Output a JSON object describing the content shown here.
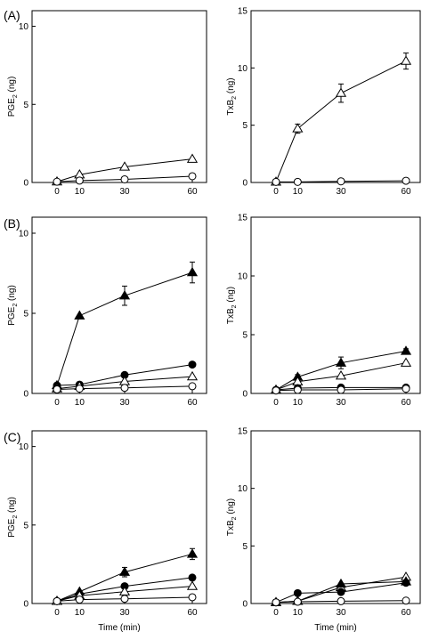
{
  "figure": {
    "panel_letters": [
      "(A)",
      "(B)",
      "(C)"
    ],
    "xlabel": "Time (min)"
  },
  "chart_data": [
    {
      "type": "line",
      "panel": "(A)",
      "ylabel": "PGE2 (ng)",
      "x_ticks": [
        "0",
        "10",
        "30",
        "60"
      ],
      "x": [
        0,
        10,
        30,
        60
      ],
      "ylim": [
        0,
        11
      ],
      "y_ticks": [
        "0",
        "5",
        "10"
      ],
      "series": [
        {
          "marker": "open-triangle",
          "values": [
            0.05,
            0.5,
            1.0,
            1.5
          ],
          "errors": [
            0,
            0,
            0,
            0
          ]
        },
        {
          "marker": "open-circle",
          "values": [
            0.05,
            0.12,
            0.2,
            0.4
          ],
          "errors": [
            0,
            0,
            0,
            0
          ]
        }
      ]
    },
    {
      "type": "line",
      "panel": "(A)",
      "ylabel": "TxB2 (ng)",
      "x_ticks": [
        "0",
        "10",
        "30",
        "60"
      ],
      "x": [
        0,
        10,
        30,
        60
      ],
      "ylim": [
        0,
        15
      ],
      "y_ticks": [
        "0",
        "5",
        "10",
        "15"
      ],
      "series": [
        {
          "marker": "open-triangle",
          "values": [
            0.05,
            4.7,
            7.8,
            10.6
          ],
          "errors": [
            0,
            0.4,
            0.8,
            0.7
          ]
        },
        {
          "marker": "open-circle",
          "values": [
            0.05,
            0.05,
            0.1,
            0.15
          ],
          "errors": [
            0,
            0,
            0,
            0
          ]
        }
      ]
    },
    {
      "type": "line",
      "panel": "(B)",
      "ylabel": "PGE2 (ng)",
      "x_ticks": [
        "0",
        "10",
        "30",
        "60"
      ],
      "x": [
        0,
        10,
        30,
        60
      ],
      "ylim": [
        0,
        11
      ],
      "y_ticks": [
        "0",
        "5",
        "10"
      ],
      "series": [
        {
          "marker": "filled-triangle",
          "values": [
            0.5,
            4.85,
            6.1,
            7.55
          ],
          "errors": [
            0,
            0,
            0.6,
            0.65
          ]
        },
        {
          "marker": "filled-circle",
          "values": [
            0.5,
            0.55,
            1.15,
            1.8
          ],
          "errors": [
            0,
            0,
            0,
            0
          ]
        },
        {
          "marker": "open-triangle",
          "values": [
            0.3,
            0.45,
            0.75,
            1.05
          ],
          "errors": [
            0,
            0,
            0,
            0
          ]
        },
        {
          "marker": "open-circle",
          "values": [
            0.25,
            0.3,
            0.35,
            0.45
          ],
          "errors": [
            0,
            0,
            0,
            0
          ]
        }
      ]
    },
    {
      "type": "line",
      "panel": "(B)",
      "ylabel": "TxB2 (ng)",
      "x_ticks": [
        "0",
        "10",
        "30",
        "60"
      ],
      "x": [
        0,
        10,
        30,
        60
      ],
      "ylim": [
        0,
        15
      ],
      "y_ticks": [
        "0",
        "5",
        "10",
        "15"
      ],
      "series": [
        {
          "marker": "filled-triangle",
          "values": [
            0.3,
            1.4,
            2.6,
            3.6
          ],
          "errors": [
            0,
            0.2,
            0.5,
            0.2
          ]
        },
        {
          "marker": "open-triangle",
          "values": [
            0.3,
            1.0,
            1.5,
            2.6
          ],
          "errors": [
            0,
            0,
            0,
            0
          ]
        },
        {
          "marker": "filled-circle",
          "values": [
            0.3,
            0.45,
            0.5,
            0.5
          ],
          "errors": [
            0,
            0,
            0,
            0
          ]
        },
        {
          "marker": "open-circle",
          "values": [
            0.25,
            0.3,
            0.3,
            0.4
          ],
          "errors": [
            0,
            0,
            0,
            0
          ]
        }
      ]
    },
    {
      "type": "line",
      "panel": "(C)",
      "ylabel": "PGE2 (ng)",
      "x_ticks": [
        "0",
        "10",
        "30",
        "60"
      ],
      "x": [
        0,
        10,
        30,
        60
      ],
      "ylim": [
        0,
        11
      ],
      "y_ticks": [
        "0",
        "5",
        "10"
      ],
      "series": [
        {
          "marker": "filled-triangle",
          "values": [
            0.15,
            0.75,
            2.0,
            3.15
          ],
          "errors": [
            0,
            0,
            0.3,
            0.35
          ]
        },
        {
          "marker": "filled-circle",
          "values": [
            0.15,
            0.6,
            1.1,
            1.65
          ],
          "errors": [
            0,
            0,
            0,
            0
          ]
        },
        {
          "marker": "open-triangle",
          "values": [
            0.15,
            0.5,
            0.75,
            1.1
          ],
          "errors": [
            0,
            0,
            0,
            0
          ]
        },
        {
          "marker": "open-circle",
          "values": [
            0.15,
            0.25,
            0.3,
            0.4
          ],
          "errors": [
            0,
            0,
            0,
            0
          ]
        }
      ]
    },
    {
      "type": "line",
      "panel": "(C)",
      "ylabel": "TxB2 (ng)",
      "x_ticks": [
        "0",
        "10",
        "30",
        "60"
      ],
      "x": [
        0,
        10,
        30,
        60
      ],
      "ylim": [
        0,
        15
      ],
      "y_ticks": [
        "0",
        "5",
        "10",
        "15"
      ],
      "series": [
        {
          "marker": "open-triangle",
          "values": [
            0.1,
            0.2,
            1.4,
            2.3
          ],
          "errors": [
            0,
            0,
            0,
            0
          ]
        },
        {
          "marker": "filled-triangle",
          "values": [
            0.1,
            0.2,
            1.7,
            1.9
          ],
          "errors": [
            0,
            0,
            0,
            0
          ]
        },
        {
          "marker": "filled-circle",
          "values": [
            0.1,
            0.9,
            1.0,
            1.8
          ],
          "errors": [
            0,
            0,
            0,
            0
          ]
        },
        {
          "marker": "open-circle",
          "values": [
            0.1,
            0.15,
            0.2,
            0.25
          ],
          "errors": [
            0,
            0,
            0,
            0
          ]
        }
      ]
    }
  ]
}
